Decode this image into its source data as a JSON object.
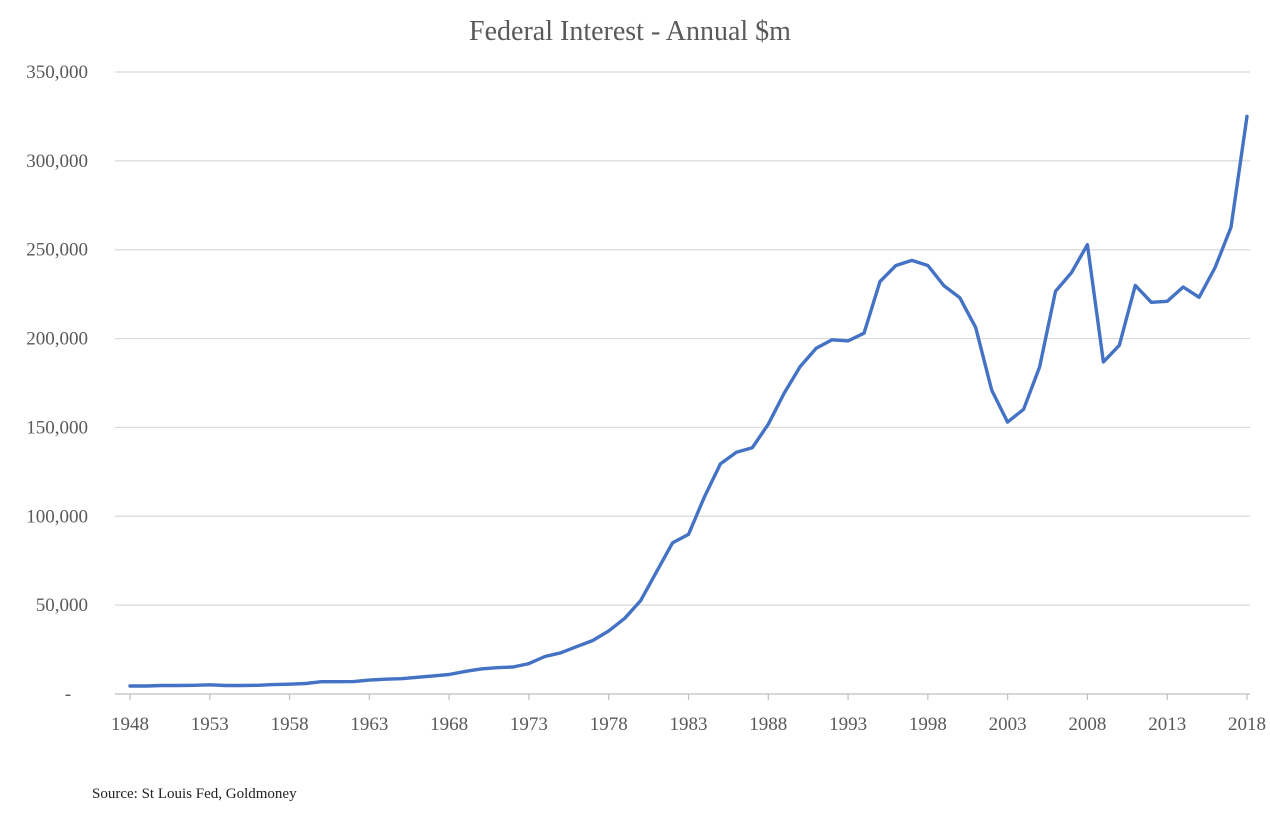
{
  "chart_data": {
    "type": "line",
    "title": "Federal Interest - Annual $m",
    "source": "Source: St Louis Fed, Goldmoney",
    "ylim": [
      0,
      350000
    ],
    "y_ticks": [
      0,
      50000,
      100000,
      150000,
      200000,
      250000,
      300000,
      350000
    ],
    "y_tick_labels": [
      "-",
      "50,000",
      "100,000",
      "150,000",
      "200,000",
      "250,000",
      "300,000",
      "350,000"
    ],
    "x_tick_labels": [
      "1948",
      "1953",
      "1958",
      "1963",
      "1968",
      "1973",
      "1978",
      "1983",
      "1988",
      "1993",
      "1998",
      "2003",
      "2008",
      "2013",
      "2018"
    ],
    "xlim": [
      1948,
      2018
    ],
    "grid": true,
    "legend": "none",
    "series_color": "#4472c4",
    "series": [
      {
        "x": [
          1948,
          1949,
          1950,
          1951,
          1952,
          1953,
          1954,
          1955,
          1956,
          1957,
          1958,
          1959,
          1960,
          1961,
          1962,
          1963,
          1964,
          1965,
          1966,
          1967,
          1968,
          1969,
          1970,
          1971,
          1972,
          1973,
          1974,
          1975,
          1976,
          1977,
          1978,
          1979,
          1980,
          1981,
          1982,
          1983,
          1984,
          1985,
          1986,
          1987,
          1988,
          1989,
          1990,
          1991,
          1992,
          1993,
          1994,
          1995,
          1996,
          1997,
          1998,
          1999,
          2000,
          2001,
          2002,
          2003,
          2004,
          2005,
          2006,
          2007,
          2008,
          2009,
          2010,
          2011,
          2012,
          2013,
          2014,
          2015,
          2016,
          2017,
          2018
        ],
        "values": [
          4500,
          4500,
          4800,
          4800,
          4900,
          5200,
          4800,
          4800,
          4900,
          5300,
          5500,
          5900,
          6900,
          6900,
          7000,
          7800,
          8300,
          8600,
          9400,
          10200,
          11000,
          12700,
          14100,
          14800,
          15200,
          17100,
          21100,
          23200,
          26700,
          30100,
          35500,
          42600,
          52500,
          68800,
          85000,
          89800,
          111000,
          129500,
          136000,
          138600,
          151800,
          169300,
          184300,
          194500,
          199300,
          198700,
          203000,
          232100,
          241100,
          244000,
          241100,
          229800,
          223000,
          206200,
          171000,
          153000,
          160200,
          184000,
          226600,
          237100,
          252800,
          186900,
          196200,
          229900,
          220400,
          221000,
          229000,
          223200,
          240000,
          262600,
          325000
        ]
      }
    ]
  }
}
